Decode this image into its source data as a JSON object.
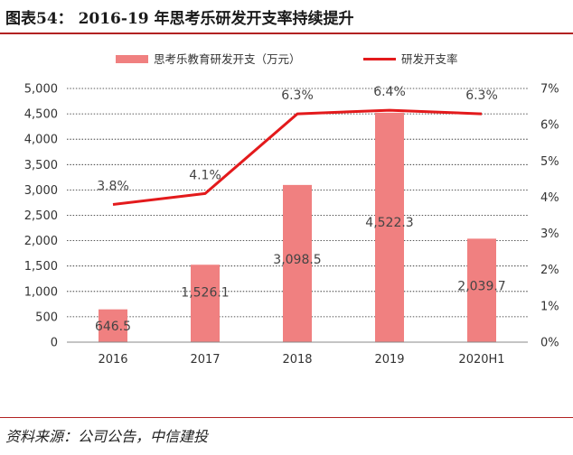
{
  "header": {
    "title": "图表54：   2016-19 年思考乐研发开支率持续提升"
  },
  "source": "资料来源：公司公告，中信建投",
  "colors": {
    "bar": "#f08080",
    "line": "#e31a1c",
    "rule": "#b22222",
    "text": "#333333"
  },
  "chart_data": {
    "type": "bar",
    "categories": [
      "2016",
      "2017",
      "2018",
      "2019",
      "2020H1"
    ],
    "series": [
      {
        "name": "思考乐教育研发开支（万元）",
        "type": "bar",
        "axis": "left",
        "values": [
          646.5,
          1526.1,
          3098.5,
          4522.3,
          2039.7
        ],
        "labels": [
          "646.5",
          "1,526.1",
          "3,098.5",
          "4,522.3",
          "2,039.7"
        ]
      },
      {
        "name": "研发开支率",
        "type": "line",
        "axis": "right",
        "values": [
          3.8,
          4.1,
          6.3,
          6.4,
          6.3
        ],
        "labels": [
          "3.8%",
          "4.1%",
          "6.3%",
          "6.4%",
          "6.3%"
        ]
      }
    ],
    "ylim": [
      0,
      5000
    ],
    "y2lim": [
      0,
      7
    ],
    "yticks": [
      "0",
      "500",
      "1,000",
      "1,500",
      "2,000",
      "2,500",
      "3,000",
      "3,500",
      "4,000",
      "4,500",
      "5,000"
    ],
    "y2ticks": [
      "0%",
      "1%",
      "2%",
      "3%",
      "4%",
      "5%",
      "6%",
      "7%"
    ],
    "grid": true,
    "legend": "top"
  }
}
